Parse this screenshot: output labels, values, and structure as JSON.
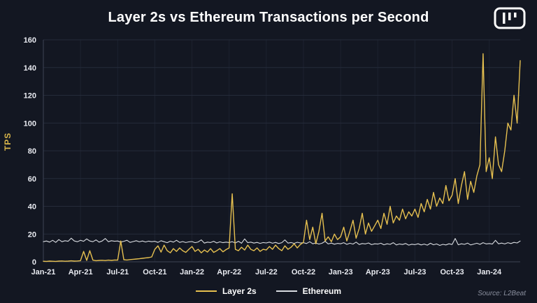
{
  "header": {
    "title": "Layer 2s vs Ethereum Transactions per Second"
  },
  "source": "Source: L2Beat",
  "colors": {
    "background": "#131722",
    "layer2s_line": "#E6C050",
    "ethereum_line": "#D9DCE1",
    "axis_text": "#E8EAF0",
    "ylabel_text": "#D9B64A",
    "gridline": "#252B3A"
  },
  "chart_data": {
    "type": "line",
    "title": "Layer 2s vs Ethereum Transactions per Second",
    "xlabel": "",
    "ylabel": "TPS",
    "ylim": [
      0,
      160
    ],
    "yticks": [
      0,
      20,
      40,
      60,
      80,
      100,
      120,
      140,
      160
    ],
    "xlim_months": [
      0,
      38.5
    ],
    "x_unit": "months since Jan-2021 (each sample = 0.25 month)",
    "x_start": 0,
    "x_step": 0.25,
    "grid": true,
    "legend_position": "bottom",
    "xticks": [
      {
        "pos": 0,
        "label": "Jan-21"
      },
      {
        "pos": 3,
        "label": "Apr-21"
      },
      {
        "pos": 6,
        "label": "Jul-21"
      },
      {
        "pos": 9,
        "label": "Oct-21"
      },
      {
        "pos": 12,
        "label": "Jan-22"
      },
      {
        "pos": 15,
        "label": "Apr-22"
      },
      {
        "pos": 18,
        "label": "Jul-22"
      },
      {
        "pos": 21,
        "label": "Oct-22"
      },
      {
        "pos": 24,
        "label": "Jan-23"
      },
      {
        "pos": 27,
        "label": "Apr-23"
      },
      {
        "pos": 30,
        "label": "Jul-23"
      },
      {
        "pos": 33,
        "label": "Oct-23"
      },
      {
        "pos": 36,
        "label": "Jan-24"
      }
    ],
    "series": [
      {
        "name": "Layer 2s",
        "color": "#E6C050",
        "values": [
          0.4,
          0.3,
          0.5,
          0.4,
          0.3,
          0.5,
          0.6,
          0.4,
          0.5,
          0.7,
          0.5,
          0.6,
          0.8,
          7.5,
          1.0,
          8.0,
          1.2,
          0.8,
          1.0,
          1.1,
          0.9,
          1.2,
          1.0,
          1.3,
          1.2,
          15.0,
          1.5,
          1.3,
          1.6,
          1.8,
          2.0,
          2.2,
          2.5,
          2.8,
          3.0,
          3.5,
          9.0,
          11.5,
          7.0,
          12.0,
          8.0,
          6.5,
          9.5,
          7.5,
          10.0,
          8.0,
          6.8,
          9.0,
          11.0,
          7.5,
          9.0,
          6.5,
          8.5,
          7.0,
          9.5,
          6.8,
          8.0,
          9.5,
          7.2,
          8.8,
          10.0,
          49.0,
          9.0,
          8.0,
          10.5,
          8.5,
          12.0,
          9.0,
          8.0,
          10.0,
          7.5,
          9.0,
          8.5,
          11.0,
          9.0,
          12.0,
          9.5,
          8.0,
          11.5,
          9.0,
          10.5,
          13.0,
          10.0,
          12.5,
          14.0,
          30.0,
          16.0,
          25.0,
          13.0,
          22.0,
          35.0,
          15.0,
          18.0,
          14.5,
          20.0,
          16.0,
          18.0,
          25.0,
          15.0,
          22.0,
          30.0,
          17.0,
          24.0,
          35.0,
          20.0,
          28.0,
          22.0,
          26.0,
          30.0,
          24.0,
          35.0,
          27.0,
          40.0,
          28.0,
          33.0,
          30.0,
          38.0,
          31.0,
          36.0,
          33.0,
          38.0,
          32.0,
          42.0,
          36.0,
          45.0,
          38.0,
          50.0,
          40.0,
          46.0,
          42.0,
          55.0,
          44.0,
          48.0,
          60.0,
          42.0,
          55.0,
          65.0,
          45.0,
          58.0,
          50.0,
          62.0,
          70.0,
          150.0,
          65.0,
          75.0,
          60.0,
          90.0,
          70.0,
          65.0,
          80.0,
          100.0,
          95.0,
          120.0,
          100.0,
          145.0
        ]
      },
      {
        "name": "Ethereum",
        "color": "#D9DCE1",
        "values": [
          14.5,
          15.0,
          14.2,
          15.5,
          14.0,
          16.0,
          14.5,
          15.2,
          14.8,
          17.0,
          15.0,
          14.5,
          15.5,
          14.8,
          16.5,
          15.0,
          14.5,
          15.8,
          14.2,
          15.0,
          16.8,
          14.5,
          15.2,
          14.8,
          15.0,
          14.2,
          14.8,
          15.5,
          14.0,
          14.6,
          15.2,
          14.4,
          15.0,
          14.3,
          14.9,
          14.5,
          14.8,
          14.0,
          15.2,
          14.5,
          13.8,
          14.9,
          14.2,
          15.5,
          14.0,
          14.6,
          13.9,
          14.4,
          14.6,
          13.8,
          14.3,
          15.8,
          13.5,
          14.2,
          13.9,
          14.8,
          13.6,
          14.4,
          13.8,
          14.2,
          13.9,
          14.5,
          13.6,
          14.8,
          13.4,
          16.5,
          13.8,
          14.2,
          13.5,
          14.0,
          13.3,
          13.9,
          13.6,
          14.2,
          13.4,
          14.0,
          13.2,
          13.8,
          15.8,
          13.5,
          13.9,
          13.3,
          14.1,
          13.6,
          13.8,
          13.2,
          14.5,
          13.0,
          13.6,
          12.8,
          13.4,
          14.8,
          12.9,
          13.5,
          12.7,
          13.3,
          13.0,
          13.8,
          12.6,
          13.4,
          12.8,
          14.2,
          12.5,
          13.2,
          12.9,
          13.6,
          12.4,
          13.0,
          12.8,
          13.4,
          12.3,
          13.0,
          12.6,
          13.8,
          12.2,
          12.9,
          12.5,
          13.2,
          12.0,
          12.7,
          12.4,
          13.0,
          12.2,
          12.8,
          12.0,
          13.4,
          12.3,
          12.9,
          11.8,
          12.6,
          12.2,
          13.0,
          12.5,
          16.8,
          12.3,
          13.0,
          12.6,
          13.5,
          12.2,
          12.8,
          13.4,
          12.6,
          13.8,
          12.9,
          13.2,
          12.8,
          15.5,
          13.0,
          13.5,
          12.9,
          13.8,
          13.2,
          14.0,
          13.6,
          15.0
        ]
      }
    ]
  },
  "legend": {
    "items": [
      {
        "label": "Layer 2s"
      },
      {
        "label": "Ethereum"
      }
    ]
  }
}
